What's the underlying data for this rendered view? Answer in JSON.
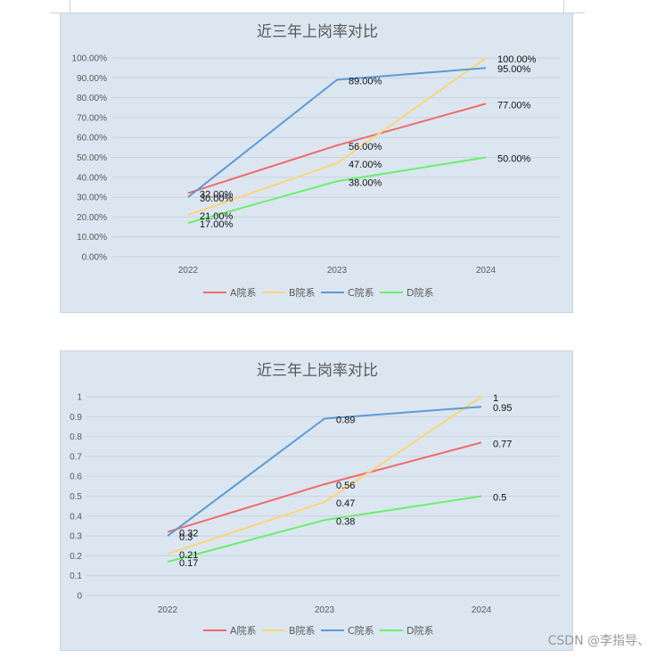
{
  "watermark": "CSDN @李指导、",
  "chart_data": [
    {
      "type": "line",
      "title": "近三年上岗率对比",
      "categories": [
        "2022",
        "2023",
        "2024"
      ],
      "ylim": [
        0,
        1
      ],
      "y_ticks": [
        0,
        0.1,
        0.2,
        0.3,
        0.4,
        0.5,
        0.6,
        0.7,
        0.8,
        0.9,
        1.0
      ],
      "y_tick_labels": [
        "0.00%",
        "10.00%",
        "20.00%",
        "30.00%",
        "40.00%",
        "50.00%",
        "60.00%",
        "70.00%",
        "80.00%",
        "90.00%",
        "100.00%"
      ],
      "grid": true,
      "legend_position": "bottom",
      "series": [
        {
          "name": "A院系",
          "color": "#f06a6a",
          "values": [
            0.32,
            0.56,
            0.77
          ],
          "labels": [
            "32.00%",
            "56.00%",
            "77.00%"
          ]
        },
        {
          "name": "B院系",
          "color": "#f9d678",
          "values": [
            0.21,
            0.47,
            1.0
          ],
          "labels": [
            "21.00%",
            "47.00%",
            "100.00%"
          ]
        },
        {
          "name": "C院系",
          "color": "#5b9bd5",
          "values": [
            0.3,
            0.89,
            0.95
          ],
          "labels": [
            "30.00%",
            "89.00%",
            "95.00%"
          ]
        },
        {
          "name": "D院系",
          "color": "#6af06a",
          "values": [
            0.17,
            0.38,
            0.5
          ],
          "labels": [
            "17.00%",
            "38.00%",
            "50.00%"
          ]
        }
      ]
    },
    {
      "type": "line",
      "title": "近三年上岗率对比",
      "categories": [
        "2022",
        "2023",
        "2024"
      ],
      "ylim": [
        0,
        1
      ],
      "y_ticks": [
        0,
        0.1,
        0.2,
        0.3,
        0.4,
        0.5,
        0.6,
        0.7,
        0.8,
        0.9,
        1.0
      ],
      "y_tick_labels": [
        "0",
        "0.1",
        "0.2",
        "0.3",
        "0.4",
        "0.5",
        "0.6",
        "0.7",
        "0.8",
        "0.9",
        "1"
      ],
      "grid": true,
      "legend_position": "bottom",
      "series": [
        {
          "name": "A院系",
          "color": "#f06a6a",
          "values": [
            0.32,
            0.56,
            0.77
          ],
          "labels": [
            "0.32",
            "0.56",
            "0.77"
          ]
        },
        {
          "name": "B院系",
          "color": "#f9d678",
          "values": [
            0.21,
            0.47,
            1.0
          ],
          "labels": [
            "0.21",
            "0.47",
            "1"
          ]
        },
        {
          "name": "C院系",
          "color": "#5b9bd5",
          "values": [
            0.3,
            0.89,
            0.95
          ],
          "labels": [
            "0.3",
            "0.89",
            "0.95"
          ]
        },
        {
          "name": "D院系",
          "color": "#6af06a",
          "values": [
            0.17,
            0.38,
            0.5
          ],
          "labels": [
            "0.17",
            "0.38",
            "0.5"
          ]
        }
      ]
    }
  ]
}
